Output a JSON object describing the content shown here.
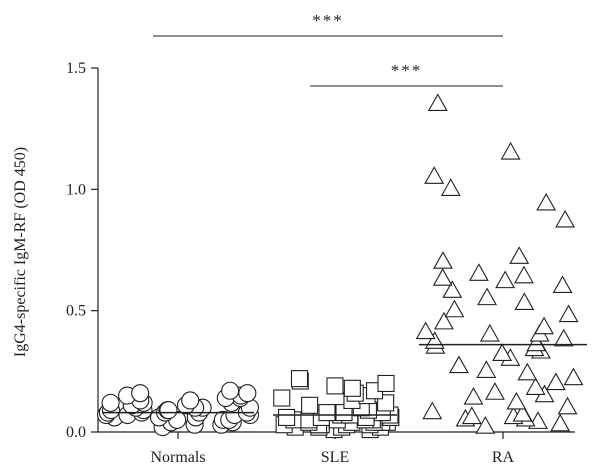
{
  "chart_data": {
    "type": "scatter",
    "subtype": "dot-plot with median lines",
    "title": "",
    "xlabel": "",
    "ylabel": "IgG4-specific IgM-RF (OD 450)",
    "ylim": [
      0,
      1.5
    ],
    "yticks": [
      "0.0",
      "0.5",
      "1.0",
      "1.5"
    ],
    "grid": false,
    "legend": "none",
    "categories": [
      "Normals",
      "SLE",
      "RA"
    ],
    "series": [
      {
        "category": "Normals",
        "marker": "circle",
        "median": 0.08,
        "values": [
          0.02,
          0.03,
          0.03,
          0.04,
          0.04,
          0.05,
          0.05,
          0.05,
          0.06,
          0.06,
          0.06,
          0.07,
          0.07,
          0.07,
          0.07,
          0.08,
          0.08,
          0.08,
          0.08,
          0.08,
          0.09,
          0.09,
          0.09,
          0.09,
          0.1,
          0.1,
          0.1,
          0.1,
          0.11,
          0.11,
          0.12,
          0.12,
          0.12,
          0.13,
          0.13,
          0.14,
          0.14,
          0.15,
          0.15,
          0.16,
          0.16,
          0.17
        ]
      },
      {
        "category": "SLE",
        "marker": "square",
        "median": 0.07,
        "values": [
          0.01,
          0.01,
          0.02,
          0.02,
          0.02,
          0.02,
          0.03,
          0.03,
          0.03,
          0.03,
          0.03,
          0.04,
          0.04,
          0.04,
          0.04,
          0.04,
          0.05,
          0.05,
          0.05,
          0.05,
          0.05,
          0.06,
          0.06,
          0.06,
          0.06,
          0.07,
          0.07,
          0.07,
          0.07,
          0.08,
          0.08,
          0.08,
          0.09,
          0.1,
          0.11,
          0.12,
          0.13,
          0.14,
          0.15,
          0.16,
          0.17,
          0.18,
          0.19,
          0.2,
          0.21,
          0.22
        ]
      },
      {
        "category": "RA",
        "marker": "triangle",
        "median": 0.36,
        "values": [
          0.02,
          0.03,
          0.04,
          0.05,
          0.05,
          0.06,
          0.06,
          0.07,
          0.08,
          0.1,
          0.12,
          0.14,
          0.15,
          0.16,
          0.18,
          0.2,
          0.22,
          0.24,
          0.25,
          0.27,
          0.3,
          0.32,
          0.33,
          0.34,
          0.35,
          0.36,
          0.37,
          0.38,
          0.4,
          0.4,
          0.41,
          0.43,
          0.45,
          0.48,
          0.5,
          0.53,
          0.55,
          0.58,
          0.6,
          0.62,
          0.63,
          0.64,
          0.65,
          0.7,
          0.72,
          0.87,
          0.94,
          1.0,
          1.05,
          1.15,
          1.35
        ]
      }
    ],
    "significance": [
      {
        "from": "Normals",
        "to": "RA",
        "label": "***"
      },
      {
        "from": "SLE",
        "to": "RA",
        "label": "***"
      }
    ],
    "colors": {
      "ink": "#231f20",
      "marker_fill": "#ffffff"
    }
  }
}
